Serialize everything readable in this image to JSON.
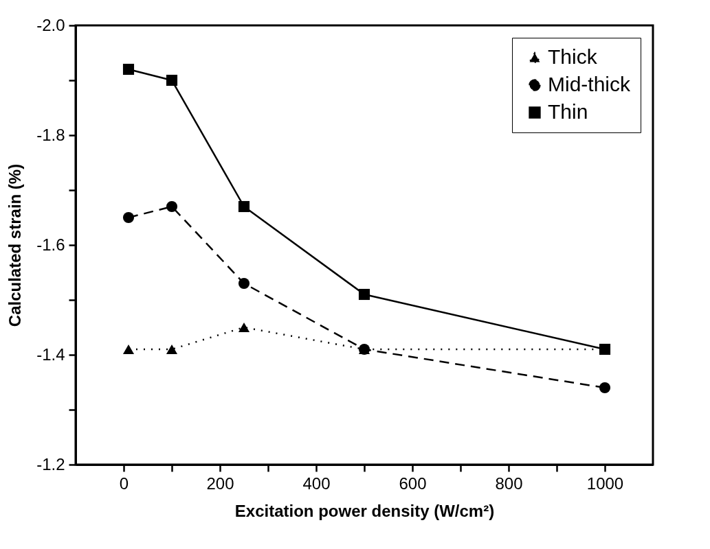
{
  "chart_data": {
    "type": "line",
    "xlabel": "Excitation power density (W/cm²)",
    "ylabel": "Calculated strain (%)",
    "x": [
      10,
      100,
      250,
      500,
      1000
    ],
    "series": [
      {
        "name": "Thick",
        "color": "#000000",
        "marker": "triangle",
        "line_style": "dotted",
        "values": [
          -1.41,
          -1.41,
          -1.45,
          -1.41,
          -1.41
        ]
      },
      {
        "name": "Mid-thick",
        "color": "#000000",
        "marker": "circle",
        "line_style": "dashed",
        "values": [
          -1.65,
          -1.67,
          -1.53,
          -1.41,
          -1.34
        ]
      },
      {
        "name": "Thin",
        "color": "#000000",
        "marker": "square",
        "line_style": "solid",
        "values": [
          -1.92,
          -1.9,
          -1.67,
          -1.51,
          -1.41
        ]
      }
    ],
    "xlim": [
      -100,
      1100
    ],
    "xticks": [
      0,
      {
        "value": 100,
        "label": null
      },
      200,
      {
        "value": 300,
        "label": null
      },
      400,
      {
        "value": 500,
        "label": null
      },
      600,
      {
        "value": 700,
        "label": null
      },
      800,
      {
        "value": 900,
        "label": null
      },
      1000
    ],
    "ylim": [
      -1.2,
      -2.0
    ],
    "yticks": [
      {
        "value": -2.0,
        "label": "-2.0"
      },
      {
        "value": -1.9,
        "label": null
      },
      {
        "value": -1.8,
        "label": "-1.8"
      },
      {
        "value": -1.7,
        "label": null
      },
      {
        "value": -1.6,
        "label": "-1.6"
      },
      {
        "value": -1.5,
        "label": null
      },
      {
        "value": -1.4,
        "label": "-1.4"
      },
      {
        "value": -1.3,
        "label": null
      },
      {
        "value": -1.2,
        "label": "-1.2"
      }
    ],
    "grid": false,
    "legend": "top right"
  }
}
